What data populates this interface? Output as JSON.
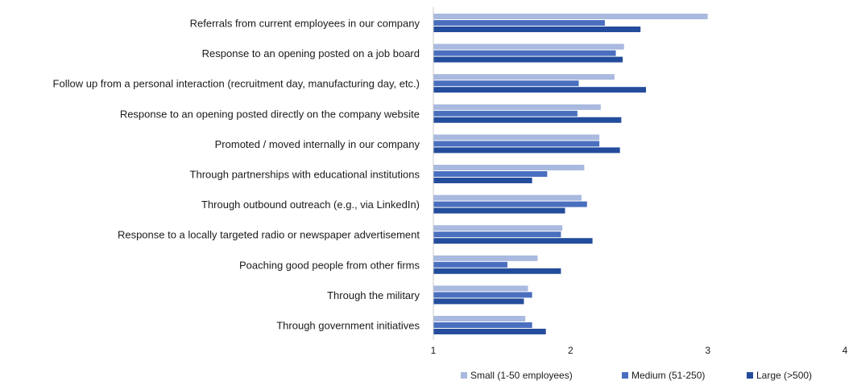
{
  "chart_data": {
    "type": "bar",
    "orientation": "horizontal",
    "title": "",
    "xlabel": "",
    "ylabel": "",
    "xlim": [
      1,
      4
    ],
    "x_ticks": [
      "1",
      "2",
      "3",
      "4"
    ],
    "grid": false,
    "legend_position": "bottom-right",
    "categories": [
      "Referrals from current employees in our company",
      "Response to an opening posted on a job board",
      "Follow up from a personal interaction (recruitment day, manufacturing day, etc.)",
      "Response to an opening posted directly on the company website",
      "Promoted / moved internally in our company",
      "Through partnerships with educational institutions",
      "Through outbound outreach (e.g., via LinkedIn)",
      "Response to a locally targeted radio or newspaper advertisement",
      "Poaching good people from other firms",
      "Through the military",
      "Through government initiatives"
    ],
    "series": [
      {
        "name": "Small (1-50 employees)",
        "color": "#a9b9df",
        "values": [
          3.0,
          2.39,
          2.32,
          2.22,
          2.21,
          2.1,
          2.08,
          1.94,
          1.76,
          1.69,
          1.67
        ]
      },
      {
        "name": "Medium (51-250)",
        "color": "#4a6fbf",
        "values": [
          2.25,
          2.33,
          2.06,
          2.05,
          2.21,
          1.83,
          2.12,
          1.93,
          1.54,
          1.72,
          1.72
        ]
      },
      {
        "name": "Large (>500)",
        "color": "#244c9c",
        "values": [
          2.51,
          2.38,
          2.55,
          2.37,
          2.36,
          1.72,
          1.96,
          2.16,
          1.93,
          1.66,
          1.82
        ]
      }
    ]
  }
}
